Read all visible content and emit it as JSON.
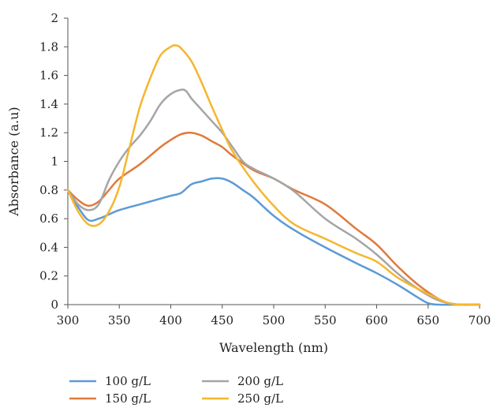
{
  "chart_data": {
    "type": "line",
    "title": "",
    "xlabel": "Wavelength (nm)",
    "ylabel": "Absorbance (a.u)",
    "xlim": [
      300,
      700
    ],
    "ylim": [
      0,
      2
    ],
    "xticks": [
      300,
      350,
      400,
      450,
      500,
      550,
      600,
      650,
      700
    ],
    "yticks": [
      0,
      0.2,
      0.4,
      0.6,
      0.8,
      1,
      1.2,
      1.4,
      1.6,
      1.8,
      2
    ],
    "grid": false,
    "legend_position": "bottom",
    "series": [
      {
        "name": "100 g/L",
        "color": "#5b9bd5",
        "x": [
          300,
          310,
          320,
          330,
          340,
          350,
          370,
          390,
          400,
          410,
          420,
          430,
          440,
          450,
          460,
          470,
          480,
          500,
          520,
          550,
          580,
          600,
          620,
          640,
          650,
          660,
          680,
          700
        ],
        "y": [
          0.8,
          0.68,
          0.59,
          0.6,
          0.63,
          0.66,
          0.7,
          0.74,
          0.76,
          0.78,
          0.84,
          0.86,
          0.88,
          0.88,
          0.85,
          0.8,
          0.75,
          0.62,
          0.52,
          0.4,
          0.29,
          0.22,
          0.14,
          0.05,
          0.01,
          0.0,
          0.0,
          0.0
        ]
      },
      {
        "name": "150 g/L",
        "color": "#e07a3b",
        "x": [
          300,
          310,
          320,
          330,
          340,
          350,
          370,
          390,
          400,
          410,
          420,
          430,
          440,
          450,
          460,
          480,
          500,
          520,
          550,
          580,
          600,
          620,
          640,
          660,
          670,
          680,
          700
        ],
        "y": [
          0.8,
          0.73,
          0.69,
          0.72,
          0.8,
          0.88,
          0.98,
          1.1,
          1.15,
          1.19,
          1.2,
          1.18,
          1.14,
          1.1,
          1.04,
          0.94,
          0.88,
          0.8,
          0.7,
          0.53,
          0.42,
          0.27,
          0.14,
          0.04,
          0.01,
          0.0,
          0.0
        ]
      },
      {
        "name": "200 g/L",
        "color": "#a5a5a5",
        "x": [
          300,
          310,
          320,
          330,
          340,
          350,
          360,
          370,
          380,
          390,
          400,
          410,
          415,
          420,
          430,
          440,
          450,
          460,
          470,
          480,
          500,
          520,
          550,
          580,
          600,
          620,
          640,
          660,
          680,
          700
        ],
        "y": [
          0.8,
          0.7,
          0.66,
          0.7,
          0.87,
          1.0,
          1.1,
          1.18,
          1.28,
          1.4,
          1.47,
          1.5,
          1.49,
          1.44,
          1.36,
          1.28,
          1.2,
          1.1,
          1.0,
          0.95,
          0.88,
          0.79,
          0.6,
          0.46,
          0.35,
          0.22,
          0.11,
          0.03,
          0.0,
          0.0
        ]
      },
      {
        "name": "250 g/L",
        "color": "#f5b62e",
        "x": [
          300,
          310,
          320,
          330,
          340,
          350,
          360,
          370,
          380,
          390,
          400,
          405,
          410,
          420,
          430,
          440,
          450,
          460,
          480,
          500,
          520,
          550,
          580,
          600,
          620,
          640,
          660,
          670,
          680,
          700
        ],
        "y": [
          0.8,
          0.65,
          0.56,
          0.56,
          0.65,
          0.82,
          1.1,
          1.38,
          1.58,
          1.74,
          1.8,
          1.81,
          1.79,
          1.7,
          1.55,
          1.38,
          1.22,
          1.07,
          0.86,
          0.69,
          0.56,
          0.46,
          0.36,
          0.3,
          0.19,
          0.11,
          0.04,
          0.01,
          0.0,
          0.0
        ]
      }
    ]
  }
}
